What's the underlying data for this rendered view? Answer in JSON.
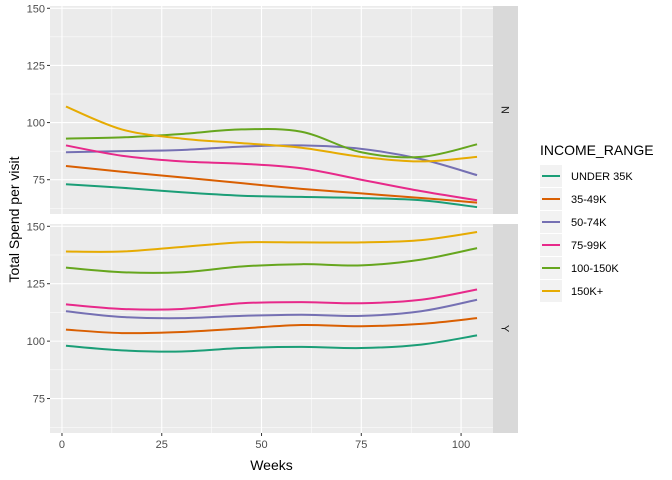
{
  "chart_data": {
    "type": "line",
    "xlabel": "Weeks",
    "ylabel": "Total Spend per visit",
    "xlim": [
      -3,
      108
    ],
    "x_ticks": [
      0,
      25,
      50,
      75,
      100
    ],
    "legend": {
      "title": "INCOME_RANGE",
      "placement": "right"
    },
    "grid": true,
    "panels": [
      {
        "strip": "N",
        "ylim": [
          60,
          151
        ],
        "y_ticks": [
          75,
          100,
          125,
          150
        ],
        "series": [
          {
            "name": "UNDER 35K",
            "color": "#1B9E77",
            "x": [
              1,
              15,
              30,
              45,
              60,
              75,
              90,
              104
            ],
            "y": [
              73,
              71.5,
              69.5,
              68,
              67.5,
              67,
              66,
              63
            ]
          },
          {
            "name": "35-49K",
            "color": "#D95F02",
            "x": [
              1,
              15,
              30,
              45,
              60,
              75,
              90,
              104
            ],
            "y": [
              81,
              78.5,
              76,
              73.5,
              71,
              69,
              67,
              65
            ]
          },
          {
            "name": "50-74K",
            "color": "#7570B3",
            "x": [
              1,
              15,
              30,
              45,
              60,
              75,
              90,
              104
            ],
            "y": [
              87,
              87.5,
              88,
              89.5,
              90,
              88.5,
              84,
              77
            ]
          },
          {
            "name": "75-99K",
            "color": "#E7298A",
            "x": [
              1,
              15,
              30,
              45,
              60,
              75,
              90,
              104
            ],
            "y": [
              90,
              85.5,
              83,
              82,
              80,
              75,
              70,
              66
            ]
          },
          {
            "name": "100-150K",
            "color": "#66A61E",
            "x": [
              1,
              15,
              30,
              45,
              60,
              75,
              90,
              104
            ],
            "y": [
              93,
              93.5,
              95,
              97,
              96,
              87,
              85,
              90.5
            ]
          },
          {
            "name": "150K+",
            "color": "#E6AB02",
            "x": [
              1,
              15,
              30,
              45,
              60,
              75,
              90,
              104
            ],
            "y": [
              107,
              97,
              93,
              91,
              89,
              85,
              83,
              85
            ]
          }
        ]
      },
      {
        "strip": "Y",
        "ylim": [
          60,
          151
        ],
        "y_ticks": [
          75,
          100,
          125,
          150
        ],
        "series": [
          {
            "name": "UNDER 35K",
            "color": "#1B9E77",
            "x": [
              1,
              15,
              30,
              45,
              60,
              75,
              90,
              104
            ],
            "y": [
              98,
              96,
              95.5,
              97,
              97.5,
              97,
              98.5,
              102.5
            ]
          },
          {
            "name": "35-49K",
            "color": "#D95F02",
            "x": [
              1,
              15,
              30,
              45,
              60,
              75,
              90,
              104
            ],
            "y": [
              105,
              103.5,
              104,
              105.5,
              107,
              106.5,
              107.5,
              110
            ]
          },
          {
            "name": "50-74K",
            "color": "#7570B3",
            "x": [
              1,
              15,
              30,
              45,
              60,
              75,
              90,
              104
            ],
            "y": [
              113,
              110.5,
              110,
              111,
              111.5,
              111,
              113,
              118
            ]
          },
          {
            "name": "75-99K",
            "color": "#E7298A",
            "x": [
              1,
              15,
              30,
              45,
              60,
              75,
              90,
              104
            ],
            "y": [
              116,
              114,
              114,
              116.5,
              117,
              116.5,
              118,
              122.5
            ]
          },
          {
            "name": "100-150K",
            "color": "#66A61E",
            "x": [
              1,
              15,
              30,
              45,
              60,
              75,
              90,
              104
            ],
            "y": [
              132,
              130,
              130,
              132.5,
              133.5,
              133,
              135.5,
              140.5
            ]
          },
          {
            "name": "150K+",
            "color": "#E6AB02",
            "x": [
              1,
              15,
              30,
              45,
              60,
              75,
              90,
              104
            ],
            "y": [
              139,
              139,
              141,
              143,
              143,
              143,
              144,
              147.5
            ]
          }
        ]
      }
    ]
  }
}
